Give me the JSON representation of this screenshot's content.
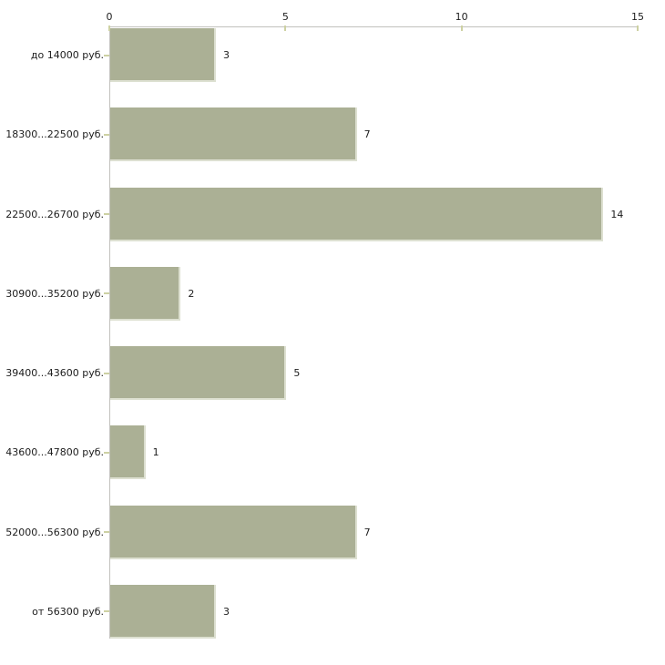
{
  "chart_data": {
    "type": "bar",
    "orientation": "horizontal",
    "title": "",
    "xlabel": "",
    "ylabel": "",
    "categories": [
      "до 14000 руб.",
      "18300...22500 руб.",
      "22500...26700 руб.",
      "30900...35200 руб.",
      "39400...43600 руб.",
      "43600...47800 руб.",
      "52000...56300 руб.",
      "от 56300 руб."
    ],
    "values": [
      3,
      7,
      14,
      2,
      5,
      1,
      7,
      3
    ],
    "xlim": [
      0,
      15
    ],
    "x_ticks": [
      0,
      5,
      10,
      15
    ],
    "x_axis_position": "top",
    "grid": false,
    "legend": false,
    "data_labels_shown": true,
    "colors": {
      "bar_fill": "#abb095",
      "bar_edge": "#dde0d1",
      "axis_line": "#c2c1bd",
      "tick_mark": "#cdd1a3",
      "text": "#1c1c1c",
      "background": "#ffffff"
    }
  }
}
